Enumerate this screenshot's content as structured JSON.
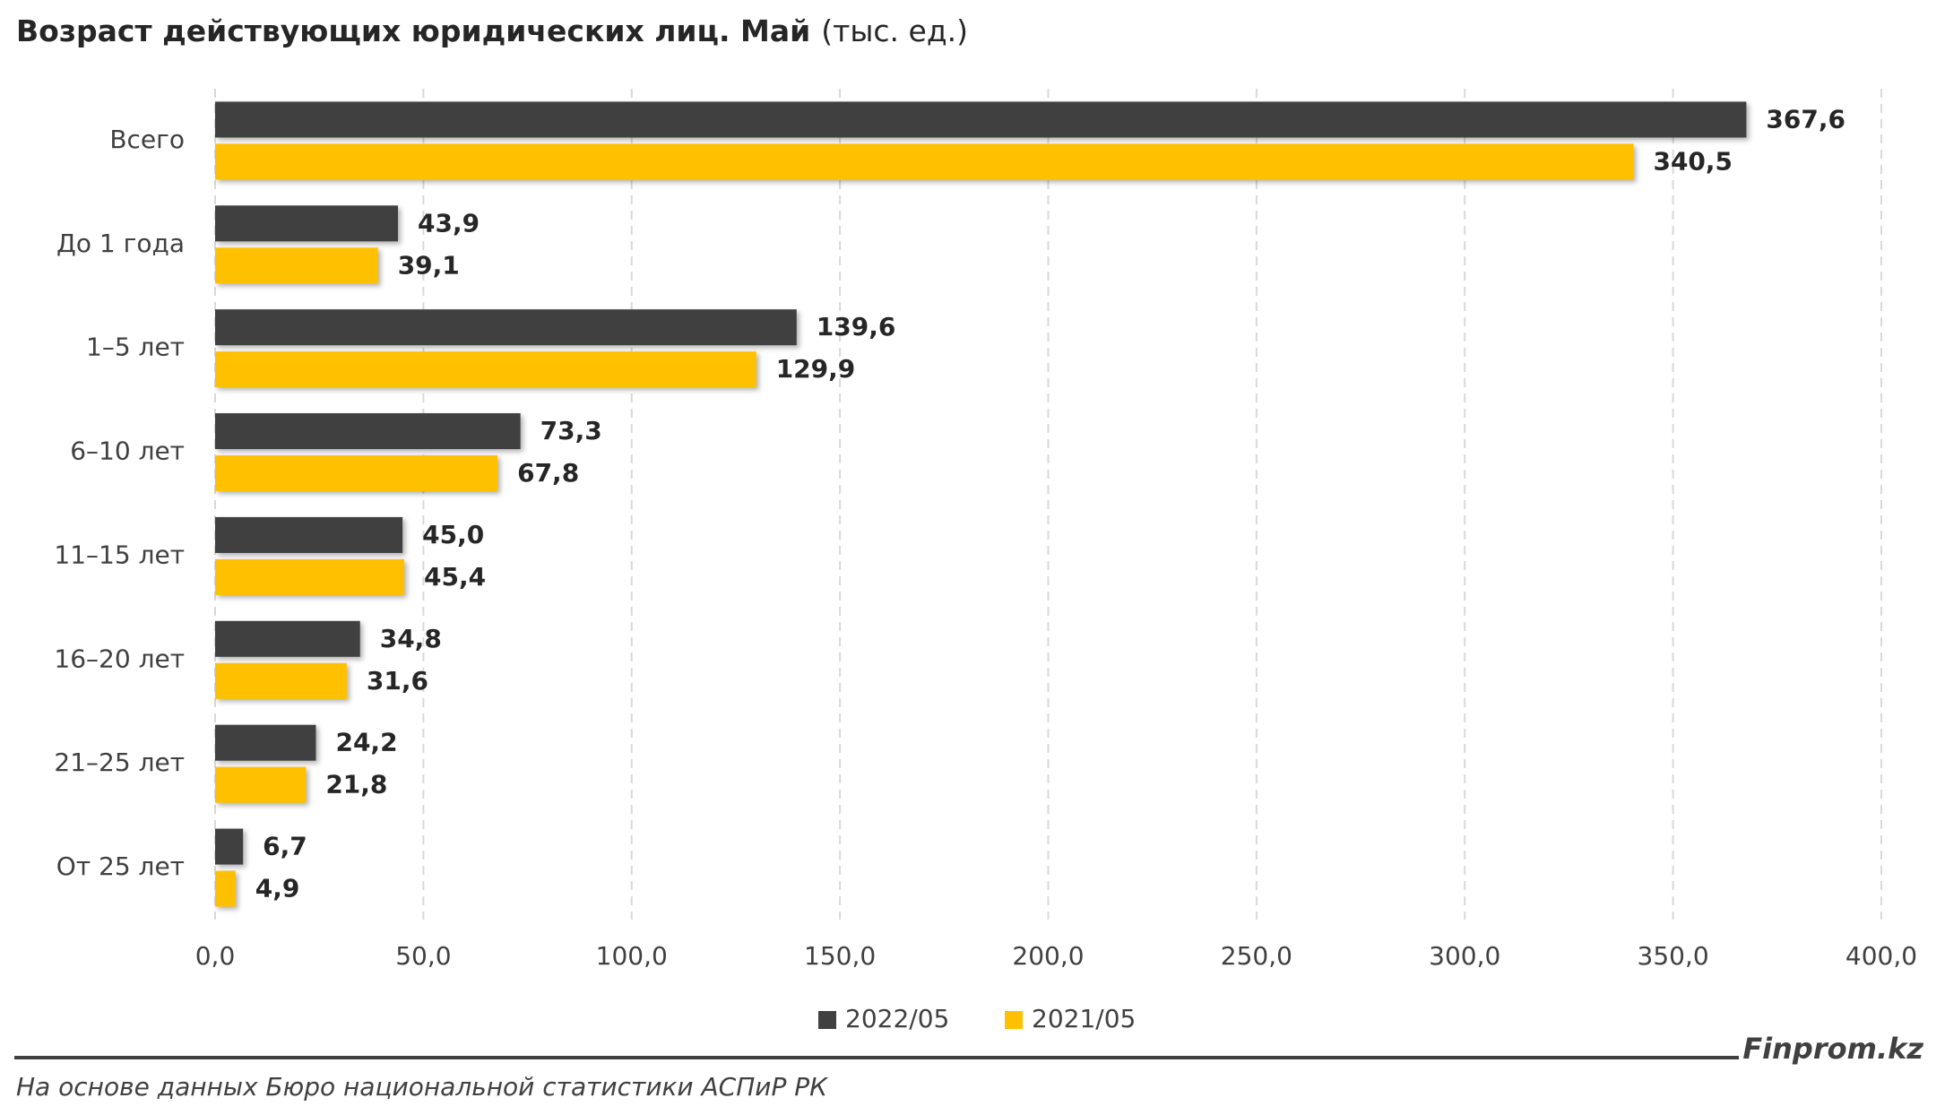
{
  "chart_data": {
    "type": "hbar",
    "title": "Возраст действующих юридических лиц. Май",
    "unit": "(тыс. ед.)",
    "categories": [
      "Всего",
      "До 1 года",
      "1–5 лет",
      "6–10 лет",
      "11–15 лет",
      "16–20 лет",
      "21–25 лет",
      "От 25 лет"
    ],
    "series": [
      {
        "name": "2022/05",
        "color": "#404040",
        "values": [
          367.6,
          43.9,
          139.6,
          73.3,
          45.0,
          34.8,
          24.2,
          6.7
        ],
        "value_labels": [
          "367,6",
          "43,9",
          "139,6",
          "73,3",
          "45,0",
          "34,8",
          "24,2",
          "6,7"
        ]
      },
      {
        "name": "2021/05",
        "color": "#ffc000",
        "values": [
          340.5,
          39.1,
          129.9,
          67.8,
          45.4,
          31.6,
          21.8,
          4.9
        ],
        "value_labels": [
          "340,5",
          "39,1",
          "129,9",
          "67,8",
          "45,4",
          "31,6",
          "21,8",
          "4,9"
        ]
      }
    ],
    "xlim": [
      0,
      400
    ],
    "xticks": [
      {
        "value": 0,
        "label": "0,0"
      },
      {
        "value": 50,
        "label": "50,0"
      },
      {
        "value": 100,
        "label": "100,0"
      },
      {
        "value": 150,
        "label": "150,0"
      },
      {
        "value": 200,
        "label": "200,0"
      },
      {
        "value": 250,
        "label": "250,0"
      },
      {
        "value": 300,
        "label": "300,0"
      },
      {
        "value": 350,
        "label": "350,0"
      },
      {
        "value": 400,
        "label": "400,0"
      }
    ],
    "grid": true,
    "legend": "bottom",
    "brand": "Finprom.kz",
    "source": "На основе данных Бюро национальной статистики АСПиР РК"
  }
}
